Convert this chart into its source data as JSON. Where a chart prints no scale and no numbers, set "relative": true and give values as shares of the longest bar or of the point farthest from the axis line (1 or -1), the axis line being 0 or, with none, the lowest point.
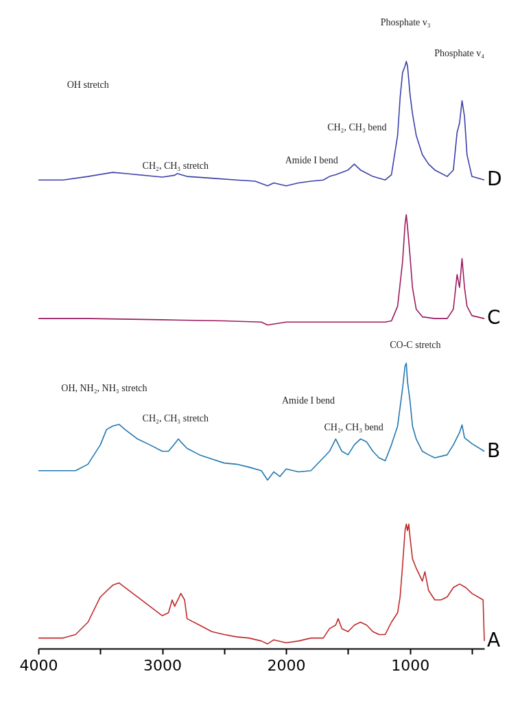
{
  "chart_data": {
    "type": "line",
    "relative": true,
    "xlim": [
      4000,
      400
    ],
    "xticks": [
      4000,
      {
        "value": 3500,
        "label": null
      },
      3000,
      {
        "value": 2500,
        "label": null
      },
      2000,
      {
        "value": 1500,
        "label": null
      },
      1000,
      {
        "value": 500,
        "label": null
      }
    ],
    "series": [
      {
        "name": "D",
        "color": "#3a40a8",
        "x": [
          4000,
          3800,
          3600,
          3400,
          3300,
          3000,
          2900,
          2880,
          2800,
          2600,
          2400,
          2250,
          2150,
          2100,
          2000,
          1900,
          1800,
          1700,
          1650,
          1600,
          1500,
          1450,
          1400,
          1300,
          1200,
          1150,
          1100,
          1080,
          1060,
          1040,
          1030,
          1020,
          1000,
          980,
          950,
          900,
          850,
          800,
          700,
          650,
          620,
          600,
          580,
          560,
          540,
          500,
          400
        ],
        "values": [
          0.798,
          0.798,
          0.804,
          0.811,
          0.809,
          0.803,
          0.806,
          0.809,
          0.804,
          0.801,
          0.798,
          0.796,
          0.788,
          0.793,
          0.788,
          0.793,
          0.796,
          0.798,
          0.804,
          0.807,
          0.815,
          0.825,
          0.815,
          0.804,
          0.798,
          0.807,
          0.874,
          0.938,
          0.981,
          0.992,
          1,
          0.992,
          0.944,
          0.911,
          0.874,
          0.841,
          0.825,
          0.815,
          0.804,
          0.815,
          0.879,
          0.895,
          0.933,
          0.906,
          0.841,
          0.804,
          0.798
        ]
      },
      {
        "name": "C",
        "color": "#9b1a5e",
        "x": [
          4000,
          3580,
          3000,
          2500,
          2200,
          2150,
          2000,
          1500,
          1200,
          1150,
          1100,
          1060,
          1040,
          1030,
          1020,
          1000,
          980,
          950,
          900,
          800,
          700,
          650,
          620,
          600,
          580,
          560,
          540,
          500,
          400
        ],
        "values": [
          0.562,
          0.562,
          0.56,
          0.558,
          0.556,
          0.551,
          0.556,
          0.556,
          0.556,
          0.558,
          0.583,
          0.659,
          0.723,
          0.739,
          0.718,
          0.669,
          0.615,
          0.578,
          0.565,
          0.562,
          0.562,
          0.578,
          0.637,
          0.615,
          0.664,
          0.615,
          0.583,
          0.567,
          0.562
        ]
      },
      {
        "name": "B",
        "color": "#2277b0",
        "x": [
          4000,
          3700,
          3600,
          3500,
          3450,
          3400,
          3350,
          3300,
          3200,
          3100,
          3000,
          2950,
          2900,
          2870,
          2850,
          2800,
          2700,
          2600,
          2500,
          2400,
          2300,
          2200,
          2150,
          2100,
          2050,
          2000,
          1900,
          1800,
          1700,
          1650,
          1600,
          1550,
          1500,
          1450,
          1400,
          1350,
          1300,
          1250,
          1200,
          1150,
          1100,
          1060,
          1040,
          1030,
          1020,
          1000,
          980,
          950,
          900,
          850,
          800,
          700,
          650,
          600,
          580,
          560,
          500,
          400
        ],
        "values": [
          0.303,
          0.303,
          0.314,
          0.347,
          0.373,
          0.379,
          0.382,
          0.373,
          0.357,
          0.347,
          0.336,
          0.336,
          0.349,
          0.357,
          0.352,
          0.341,
          0.33,
          0.323,
          0.316,
          0.314,
          0.309,
          0.303,
          0.287,
          0.301,
          0.293,
          0.306,
          0.301,
          0.303,
          0.325,
          0.336,
          0.357,
          0.336,
          0.33,
          0.347,
          0.357,
          0.352,
          0.336,
          0.325,
          0.32,
          0.347,
          0.379,
          0.443,
          0.481,
          0.486,
          0.454,
          0.422,
          0.379,
          0.357,
          0.336,
          0.33,
          0.325,
          0.33,
          0.347,
          0.368,
          0.381,
          0.359,
          0.349,
          0.336
        ]
      },
      {
        "name": "A",
        "color": "#c0282a",
        "x": [
          4000,
          3800,
          3700,
          3600,
          3500,
          3400,
          3350,
          3300,
          3200,
          3100,
          3000,
          2950,
          2920,
          2900,
          2850,
          2820,
          2800,
          2700,
          2600,
          2500,
          2400,
          2300,
          2200,
          2150,
          2100,
          2000,
          1900,
          1800,
          1700,
          1650,
          1600,
          1580,
          1550,
          1500,
          1450,
          1400,
          1350,
          1300,
          1250,
          1200,
          1150,
          1100,
          1080,
          1060,
          1040,
          1030,
          1020,
          1010,
          1000,
          980,
          950,
          900,
          880,
          850,
          800,
          750,
          700,
          650,
          600,
          550,
          500,
          410,
          400
        ],
        "values": [
          0.018,
          0.018,
          0.024,
          0.045,
          0.088,
          0.108,
          0.112,
          0.104,
          0.088,
          0.072,
          0.056,
          0.061,
          0.083,
          0.072,
          0.094,
          0.083,
          0.051,
          0.04,
          0.029,
          0.024,
          0.02,
          0.018,
          0.013,
          0.008,
          0.015,
          0.01,
          0.013,
          0.018,
          0.018,
          0.034,
          0.04,
          0.051,
          0.034,
          0.029,
          0.04,
          0.045,
          0.04,
          0.029,
          0.024,
          0.024,
          0.045,
          0.061,
          0.088,
          0.142,
          0.201,
          0.212,
          0.201,
          0.212,
          0.19,
          0.153,
          0.137,
          0.115,
          0.131,
          0.099,
          0.083,
          0.083,
          0.088,
          0.104,
          0.11,
          0.104,
          0.094,
          0.083,
          0.013
        ]
      }
    ],
    "annotations": [
      "OH stretch",
      "CH₂, CH₃ stretch",
      "Amide I bend",
      "CH₂, CH₃ bend",
      "Phosphate v₃",
      "Phosphate v₄",
      "CO-C stretch",
      "OH, NH₂, NH₃ stretch",
      "CH₂, CH₃ stretch",
      "Amide I bend",
      "CH₂, CH₃ bend"
    ]
  }
}
